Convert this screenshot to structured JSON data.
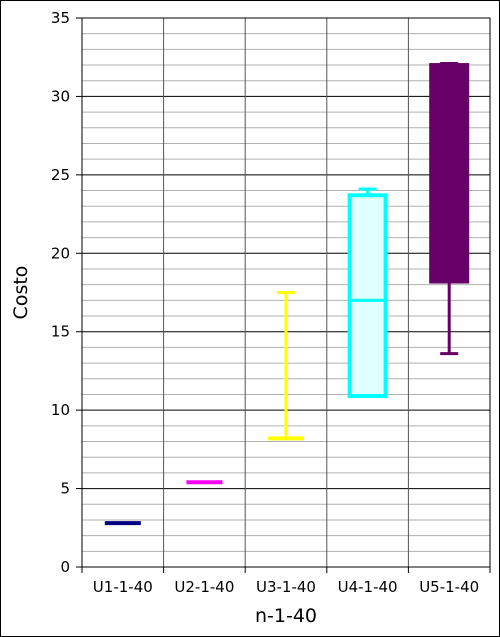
{
  "chart_data": {
    "type": "boxplot",
    "title": "",
    "xlabel": "n-1-40",
    "ylabel": "Costo",
    "ylim": [
      0,
      35
    ],
    "y_ticks": [
      0,
      5,
      10,
      15,
      20,
      25,
      30,
      35
    ],
    "grid": "on",
    "categories": [
      "U1-1-40",
      "U2-1-40",
      "U3-1-40",
      "U4-1-40",
      "U5-1-40"
    ],
    "boxes": [
      {
        "category": "U1-1-40",
        "min": 2.8,
        "q1": 2.8,
        "median": 2.8,
        "q3": 2.8,
        "max": 2.8,
        "color": "#000080",
        "fill": "#000080"
      },
      {
        "category": "U2-1-40",
        "min": 5.4,
        "q1": 5.4,
        "median": 5.4,
        "q3": 5.4,
        "max": 5.4,
        "color": "#ff00ff",
        "fill": "#ff00ff"
      },
      {
        "category": "U3-1-40",
        "min": 8.2,
        "q1": 8.2,
        "median": 8.2,
        "q3": 8.2,
        "max": 17.5,
        "color": "#ffff00",
        "fill": "#ffff00"
      },
      {
        "category": "U4-1-40",
        "min": 10.9,
        "q1": 10.9,
        "median": 17.0,
        "q3": 23.7,
        "max": 24.1,
        "color": "#00ffff",
        "fill": "#e0ffff"
      },
      {
        "category": "U5-1-40",
        "min": 13.6,
        "q1": 18.2,
        "median": 18.2,
        "q3": 32.0,
        "max": 32.1,
        "color": "#660066",
        "fill": "#660066"
      }
    ]
  }
}
